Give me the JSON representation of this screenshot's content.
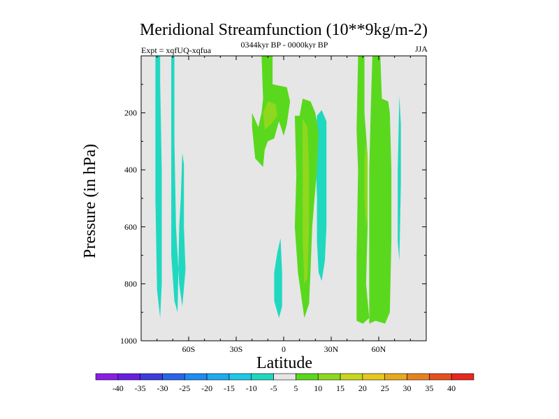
{
  "chart_data": {
    "type": "heatmap",
    "title": "Meridional Streamfunction (10**9kg/m-2)",
    "subtitle_left": "Expt = xqfUQ-xqfua",
    "subtitle_center": "0344kyr BP - 0000kyr BP",
    "subtitle_right": "JJA",
    "xlabel": "Latitude",
    "ylabel": "Pressure (in hPa)",
    "xlim": [
      -90,
      90
    ],
    "ylim": [
      1000,
      0
    ],
    "background_color": "#e6e6e6",
    "x_ticks": [
      {
        "value": -60,
        "label": "60S"
      },
      {
        "value": -30,
        "label": "30S"
      },
      {
        "value": 0,
        "label": "0"
      },
      {
        "value": 30,
        "label": "30N"
      },
      {
        "value": 60,
        "label": "60N"
      }
    ],
    "y_ticks": [
      {
        "value": 200,
        "label": "200"
      },
      {
        "value": 400,
        "label": "400"
      },
      {
        "value": 600,
        "label": "600"
      },
      {
        "value": 800,
        "label": "800"
      },
      {
        "value": 1000,
        "label": "1000"
      }
    ],
    "colorbar": {
      "labels": [
        "-40",
        "-35",
        "-30",
        "-25",
        "-20",
        "-15",
        "-10",
        "-5",
        "5",
        "10",
        "15",
        "20",
        "25",
        "30",
        "35",
        "40"
      ],
      "colors": [
        "#8a1ee6",
        "#6a1ee0",
        "#3c3cdc",
        "#2a64e8",
        "#1e8cf0",
        "#1eaaf0",
        "#1ec8e6",
        "#20d8c0",
        "#e6e6e6",
        "#5ad81e",
        "#8ed81e",
        "#c8d81e",
        "#e6c81e",
        "#e6aa1e",
        "#e6821e",
        "#e6501e",
        "#e6281e"
      ]
    },
    "regions": [
      {
        "level": -5,
        "color": "#20d8c0",
        "points": [
          [
            -81,
            0
          ],
          [
            -78,
            0
          ],
          [
            -78,
            90
          ],
          [
            -77,
            400
          ],
          [
            -77,
            800
          ],
          [
            -78,
            920
          ],
          [
            -80,
            820
          ],
          [
            -81,
            500
          ]
        ]
      },
      {
        "level": -5,
        "color": "#20d8c0",
        "points": [
          [
            -71,
            0
          ],
          [
            -69,
            0
          ],
          [
            -69,
            300
          ],
          [
            -68,
            600
          ],
          [
            -66,
            800
          ],
          [
            -64,
            880
          ],
          [
            -62,
            750
          ],
          [
            -63,
            600
          ],
          [
            -63,
            380
          ],
          [
            -64,
            340
          ],
          [
            -65,
            500
          ],
          [
            -66,
            600
          ],
          [
            -67,
            900
          ],
          [
            -69,
            860
          ],
          [
            -71,
            700
          ],
          [
            -71,
            300
          ]
        ]
      },
      {
        "level": -5,
        "color": "#20d8c0",
        "points": [
          [
            -2,
            640
          ],
          [
            -1,
            760
          ],
          [
            -1,
            880
          ],
          [
            -3,
            920
          ],
          [
            -6,
            860
          ],
          [
            -6,
            760
          ],
          [
            -4,
            690
          ]
        ]
      },
      {
        "level": -5,
        "color": "#20d8c0",
        "points": [
          [
            21,
            210
          ],
          [
            24,
            190
          ],
          [
            27,
            230
          ],
          [
            27,
            600
          ],
          [
            26,
            720
          ],
          [
            24,
            790
          ],
          [
            22,
            760
          ],
          [
            21,
            650
          ],
          [
            21,
            500
          ],
          [
            20,
            330
          ]
        ]
      },
      {
        "level": -5,
        "color": "#20d8c0",
        "points": [
          [
            73,
            140
          ],
          [
            74,
            240
          ],
          [
            74,
            450
          ],
          [
            73,
            720
          ],
          [
            72,
            650
          ],
          [
            72,
            400
          ]
        ]
      },
      {
        "level": 5,
        "color": "#5ad81e",
        "points": [
          [
            -16,
            250
          ],
          [
            -14,
            200
          ],
          [
            -13,
            150
          ],
          [
            -14,
            0
          ],
          [
            -7,
            0
          ],
          [
            -7,
            100
          ],
          [
            2,
            110
          ],
          [
            4,
            160
          ],
          [
            2,
            240
          ],
          [
            0,
            280
          ],
          [
            -3,
            230
          ],
          [
            -6,
            290
          ],
          [
            -10,
            300
          ],
          [
            -12,
            330
          ],
          [
            -13,
            390
          ],
          [
            -18,
            360
          ],
          [
            -20,
            250
          ],
          [
            -20,
            200
          ]
        ]
      },
      {
        "level": 5,
        "color": "#5ad81e",
        "points": [
          [
            7,
            210
          ],
          [
            10,
            210
          ],
          [
            12,
            150
          ],
          [
            17,
            160
          ],
          [
            20,
            200
          ],
          [
            22,
            270
          ],
          [
            21,
            400
          ],
          [
            18,
            600
          ],
          [
            17,
            750
          ],
          [
            16,
            870
          ],
          [
            13,
            920
          ],
          [
            12,
            880
          ],
          [
            9,
            760
          ],
          [
            7,
            600
          ],
          [
            8,
            420
          ]
        ]
      },
      {
        "level": 5,
        "color": "#5ad81e",
        "points": [
          [
            47,
            0
          ],
          [
            51,
            0
          ],
          [
            51,
            200
          ],
          [
            53,
            350
          ],
          [
            53,
            600
          ],
          [
            52,
            800
          ],
          [
            54,
            920
          ],
          [
            50,
            940
          ],
          [
            46,
            930
          ],
          [
            46,
            700
          ],
          [
            47,
            400
          ],
          [
            46,
            260
          ]
        ]
      },
      {
        "level": 5,
        "color": "#5ad81e",
        "points": [
          [
            56,
            0
          ],
          [
            61,
            0
          ],
          [
            62,
            150
          ],
          [
            66,
            160
          ],
          [
            67,
            200
          ],
          [
            68,
            400
          ],
          [
            68,
            650
          ],
          [
            67,
            900
          ],
          [
            64,
            940
          ],
          [
            58,
            930
          ],
          [
            54,
            940
          ],
          [
            54,
            700
          ],
          [
            54,
            400
          ],
          [
            55,
            180
          ]
        ]
      },
      {
        "level": 10,
        "color": "#8ed81e",
        "points": [
          [
            -13,
            200
          ],
          [
            -10,
            160
          ],
          [
            -5,
            170
          ],
          [
            -4,
            210
          ],
          [
            -8,
            240
          ],
          [
            -12,
            260
          ]
        ]
      },
      {
        "level": 10,
        "color": "#8ed81e",
        "points": [
          [
            12,
            220
          ],
          [
            15,
            250
          ],
          [
            16,
            400
          ],
          [
            16,
            600
          ],
          [
            15,
            780
          ],
          [
            13,
            800
          ],
          [
            12,
            650
          ],
          [
            12,
            400
          ]
        ]
      },
      {
        "level": 10,
        "color": "#8ed81e",
        "points": [
          [
            52,
            300
          ],
          [
            53,
            360
          ],
          [
            53,
            560
          ],
          [
            52,
            600
          ],
          [
            51,
            500
          ],
          [
            51,
            360
          ]
        ]
      }
    ]
  }
}
